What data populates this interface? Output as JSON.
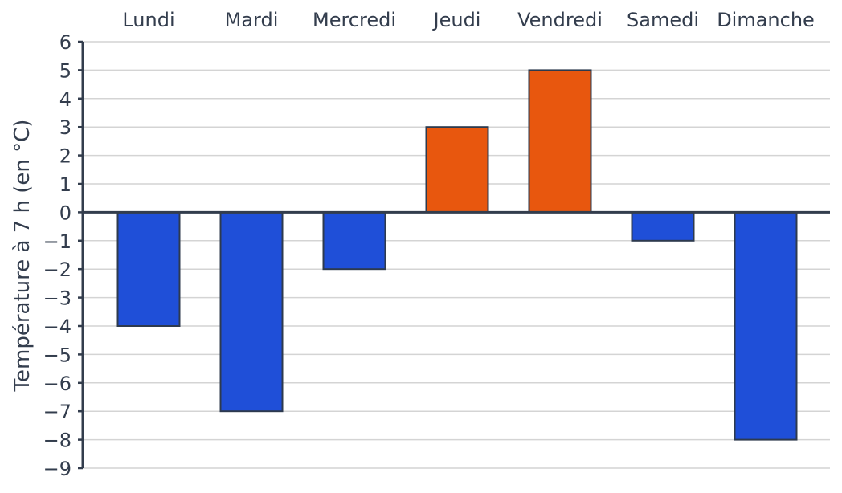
{
  "chart_data": {
    "type": "bar",
    "title": "",
    "xlabel": "",
    "ylabel": "Température à 7 h (en °C)",
    "categories": [
      "Lundi",
      "Mardi",
      "Mercredi",
      "Jeudi",
      "Vendredi",
      "Samedi",
      "Dimanche"
    ],
    "values": [
      -4,
      -7,
      -2,
      3,
      5,
      -1,
      -8
    ],
    "ylim": [
      -9,
      6
    ],
    "yticks": [
      6,
      5,
      4,
      3,
      2,
      1,
      0,
      -1,
      -2,
      -3,
      -4,
      -5,
      -6,
      -7,
      -8,
      -9
    ],
    "ytick_labels": [
      "6",
      "5",
      "4",
      "3",
      "2",
      "1",
      "0",
      "−1",
      "−2",
      "−3",
      "−4",
      "−5",
      "−6",
      "−7",
      "−8",
      "−9"
    ],
    "category_axis_position": "top",
    "grid": true,
    "legend": false,
    "colors": {
      "positive": "#e8570e",
      "negative": "#1f4fd8",
      "bar_edge": "#2d3a4e",
      "grid": "#d4d4d4",
      "axis": "#333d4d",
      "text": "#333d4d"
    }
  }
}
